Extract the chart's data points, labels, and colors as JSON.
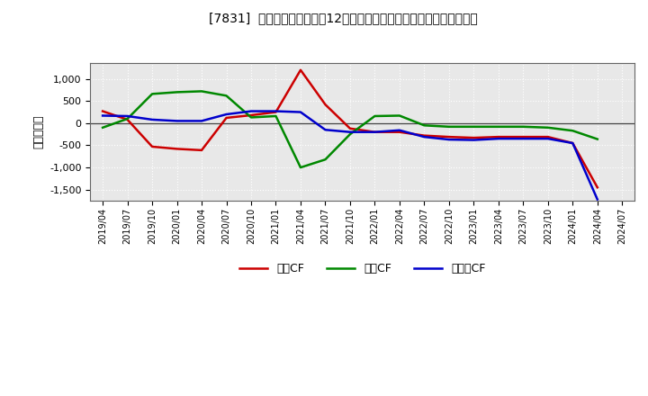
{
  "title": "[7831]  キャッシュフローの12か月移動合計の対前年同期増減額の推移",
  "ylabel": "（百万円）",
  "background_color": "#ffffff",
  "plot_bg_color": "#e8e8e8",
  "grid_color": "#ffffff",
  "x_labels": [
    "2019/04",
    "2019/07",
    "2019/10",
    "2020/01",
    "2020/04",
    "2020/07",
    "2020/10",
    "2021/01",
    "2021/04",
    "2021/07",
    "2021/10",
    "2022/01",
    "2022/04",
    "2022/07",
    "2022/10",
    "2023/01",
    "2023/04",
    "2023/07",
    "2023/10",
    "2024/01",
    "2024/04",
    "2024/07"
  ],
  "operating_cf": [
    270,
    80,
    -530,
    -580,
    -610,
    120,
    180,
    250,
    1200,
    420,
    -120,
    -200,
    -200,
    -280,
    -310,
    -330,
    -310,
    -310,
    -310,
    -450,
    -1450,
    null
  ],
  "investing_cf": [
    -100,
    100,
    660,
    700,
    720,
    620,
    130,
    160,
    -1000,
    -820,
    -250,
    160,
    170,
    -50,
    -80,
    -80,
    -80,
    -80,
    -100,
    -170,
    -360,
    null
  ],
  "free_cf": [
    170,
    160,
    80,
    50,
    50,
    200,
    270,
    270,
    250,
    -150,
    -200,
    -200,
    -160,
    -310,
    -370,
    -380,
    -350,
    -350,
    -350,
    -450,
    -1720,
    null
  ],
  "operating_color": "#cc0000",
  "investing_color": "#008800",
  "free_color": "#0000cc",
  "ylim": [
    -1750,
    1350
  ],
  "yticks": [
    -1500,
    -1000,
    -500,
    0,
    500,
    1000
  ],
  "legend_labels": [
    "営業CF",
    "投資CF",
    "フリーCF"
  ]
}
